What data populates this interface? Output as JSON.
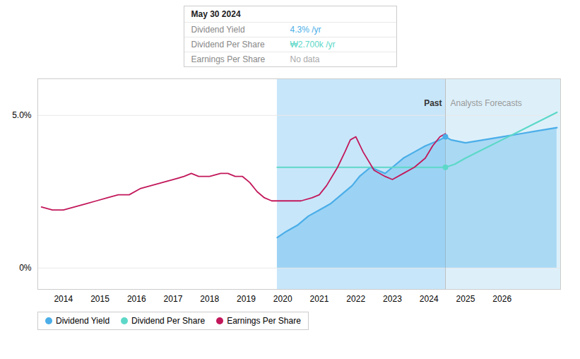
{
  "chart_data": {
    "type": "line",
    "series": [
      {
        "name": "Dividend Yield",
        "color": "#4BAEE8",
        "type": "area",
        "x": [
          2019.85,
          2020.1,
          2020.4,
          2020.7,
          2021.0,
          2021.3,
          2021.6,
          2021.9,
          2022.1,
          2022.4,
          2022.6,
          2022.8,
          2023.0,
          2023.3,
          2023.6,
          2023.9,
          2024.1,
          2024.3,
          2024.45,
          2024.6,
          2025.0,
          2025.5,
          2026.0,
          2026.5,
          2027.0,
          2027.5
        ],
        "values": [
          0.01,
          0.012,
          0.014,
          0.017,
          0.019,
          0.021,
          0.024,
          0.027,
          0.03,
          0.033,
          0.032,
          0.031,
          0.033,
          0.036,
          0.038,
          0.04,
          0.041,
          0.042,
          0.043,
          0.042,
          0.041,
          0.042,
          0.043,
          0.044,
          0.045,
          0.046
        ]
      },
      {
        "name": "Dividend Per Share",
        "color": "#5DD8C8",
        "type": "line",
        "x": [
          2019.85,
          2020.3,
          2020.8,
          2021.3,
          2021.8,
          2022.2,
          2022.5,
          2022.8,
          2023.2,
          2023.6,
          2024.0,
          2024.45,
          2024.7,
          2025.0,
          2025.5,
          2026.0,
          2026.5,
          2027.0,
          2027.5
        ],
        "values": [
          0.033,
          0.033,
          0.033,
          0.033,
          0.033,
          0.033,
          0.033,
          0.033,
          0.033,
          0.033,
          0.033,
          0.033,
          0.034,
          0.036,
          0.039,
          0.042,
          0.045,
          0.048,
          0.051
        ]
      },
      {
        "name": "Earnings Per Share",
        "color": "#C2185B",
        "type": "line",
        "x": [
          2013.4,
          2013.7,
          2014.0,
          2014.3,
          2014.6,
          2014.9,
          2015.2,
          2015.5,
          2015.8,
          2016.1,
          2016.4,
          2016.7,
          2017.0,
          2017.3,
          2017.5,
          2017.7,
          2018.0,
          2018.3,
          2018.5,
          2018.7,
          2018.9,
          2019.1,
          2019.3,
          2019.5,
          2019.7,
          2019.85,
          2020.0,
          2020.2,
          2020.5,
          2020.8,
          2021.0,
          2021.2,
          2021.5,
          2021.7,
          2021.85,
          2022.0,
          2022.2,
          2022.5,
          2022.8,
          2023.0,
          2023.3,
          2023.6,
          2023.9,
          2024.1,
          2024.3,
          2024.45
        ],
        "values": [
          0.02,
          0.019,
          0.019,
          0.02,
          0.021,
          0.022,
          0.023,
          0.024,
          0.024,
          0.026,
          0.027,
          0.028,
          0.029,
          0.03,
          0.031,
          0.03,
          0.03,
          0.031,
          0.031,
          0.03,
          0.03,
          0.028,
          0.025,
          0.023,
          0.022,
          0.022,
          0.022,
          0.022,
          0.022,
          0.023,
          0.024,
          0.027,
          0.033,
          0.038,
          0.042,
          0.043,
          0.038,
          0.032,
          0.03,
          0.029,
          0.031,
          0.033,
          0.036,
          0.04,
          0.043,
          0.044
        ]
      }
    ],
    "points": [
      {
        "x": 2024.45,
        "y": 0.043,
        "color": "#4BAEE8"
      },
      {
        "x": 2024.45,
        "y": 0.033,
        "color": "#5DD8C8"
      }
    ],
    "regions": [
      {
        "x0": 2019.85,
        "x1": 2024.45,
        "color": "#C8E6FA"
      },
      {
        "x0": 2024.45,
        "x1": 2027.6,
        "color": "#DDF0FA"
      }
    ],
    "vlines": [
      2024.45
    ],
    "annotations": [
      {
        "x": 2024.45,
        "y": 0.053,
        "text": "Past"
      },
      {
        "x": 2024.45,
        "y": 0.053,
        "text": "Analysts Forecasts"
      }
    ],
    "tooltip": {
      "title": "May 30 2024",
      "rows": [
        {
          "label": "Dividend Yield",
          "value": "4.3% /yr",
          "color": "#4BAEE8"
        },
        {
          "label": "Dividend Per Share",
          "value": "₩2.700k /yr",
          "color": "#5DD8C8"
        },
        {
          "label": "Earnings Per Share",
          "value": "No data",
          "color": "#AAAAAA"
        }
      ]
    },
    "xlim": [
      2013.3,
      2027.6
    ],
    "xticks": [
      2014,
      2015,
      2016,
      2017,
      2018,
      2019,
      2020,
      2021,
      2022,
      2023,
      2024,
      2025,
      2026
    ],
    "ylim": [
      -0.007,
      0.062
    ],
    "yticks": [
      {
        "value": 0,
        "label": "0%"
      },
      {
        "value": 0.05,
        "label": "5.0%"
      }
    ],
    "grid": true,
    "legend": "lower left"
  }
}
